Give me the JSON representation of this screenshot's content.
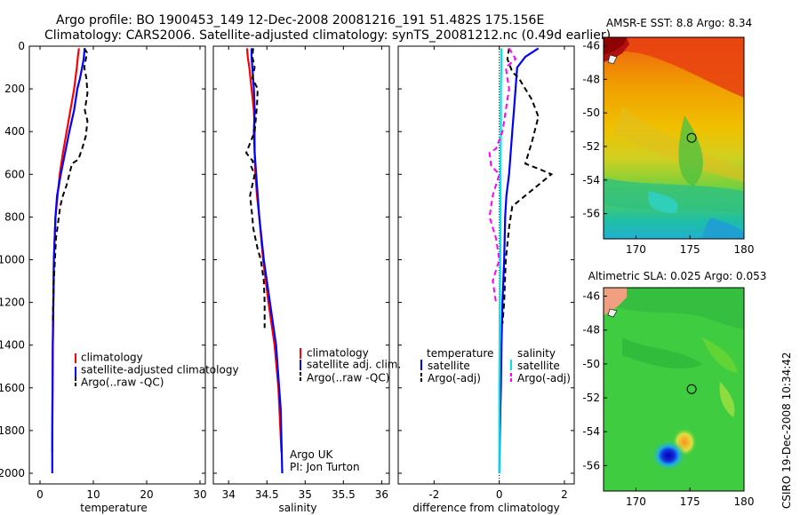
{
  "title_line1": "Argo profile: BO 1900453_149 12-Dec-2008 20081216_191 51.482S 175.156E",
  "title_line2": "Climatology: CARS2006. Satellite-adjusted climatology: synTS_20081212.nc (0.49d earlier)",
  "credit": "CSIRO 19-Dec-2008 10:34:42",
  "colors": {
    "clim": "#ff0000",
    "sat": "#0000ff",
    "argo": "#000000",
    "sal_sat": "#00e6e6",
    "sal_argo": "#ff00ff"
  },
  "chart_data": [
    {
      "type": "line",
      "name": "temperature",
      "xlabel": "temperature",
      "xlim": [
        -2,
        31
      ],
      "ylim": [
        0,
        2050
      ],
      "y_reversed": true,
      "x_ticks": [
        "0",
        "10",
        "20",
        "30"
      ],
      "y_ticks": [
        "0",
        "200",
        "400",
        "600",
        "800",
        "1000",
        "1200",
        "1400",
        "1600",
        "1800",
        "2000"
      ],
      "legend": [
        "climatology",
        "satellite-adjusted climatology",
        "Argo(..raw -QC)"
      ],
      "series": [
        {
          "name": "climatology",
          "color": "red",
          "dash": false,
          "x": [
            7.3,
            7.1,
            6.9,
            6.4,
            5.7,
            5.0,
            4.3,
            3.7,
            3.3,
            2.9,
            2.6,
            2.4,
            2.3
          ],
          "y": [
            10,
            50,
            100,
            200,
            300,
            400,
            500,
            600,
            700,
            800,
            1000,
            1400,
            1900
          ]
        },
        {
          "name": "satellite-adjusted climatology",
          "color": "blue",
          "dash": false,
          "x": [
            8.4,
            8.3,
            8.2,
            7.9,
            7.5,
            7.0,
            6.4,
            5.5,
            4.7,
            3.9,
            3.2,
            2.9,
            2.6,
            2.4,
            2.3,
            2.3
          ],
          "y": [
            10,
            30,
            60,
            100,
            150,
            200,
            300,
            400,
            500,
            600,
            700,
            800,
            1000,
            1400,
            1800,
            2000
          ]
        },
        {
          "name": "Argo(..raw -QC)",
          "color": "black",
          "dash": true,
          "x": [
            8.3,
            8.8,
            8.6,
            8.3,
            8.7,
            8.9,
            8.4,
            8.9,
            8.6,
            7.9,
            7.2,
            6.0,
            5.0,
            4.3,
            3.8,
            3.0,
            2.6,
            2.4
          ],
          "y": [
            10,
            30,
            60,
            100,
            150,
            220,
            300,
            350,
            420,
            480,
            530,
            550,
            650,
            700,
            750,
            900,
            1100,
            1300
          ]
        }
      ]
    },
    {
      "type": "line",
      "name": "salinity",
      "xlabel": "salinity",
      "xlim": [
        33.8,
        36.1
      ],
      "ylim": [
        0,
        2050
      ],
      "y_reversed": true,
      "x_ticks": [
        "34",
        "34.5",
        "35",
        "35.5",
        "36"
      ],
      "legend": [
        "climatology",
        "satellite adj. clim.",
        "Argo(..raw -QC)"
      ],
      "annotation": [
        "Argo UK",
        "PI: Jon Turton"
      ],
      "series": [
        {
          "name": "climatology",
          "color": "red",
          "dash": false,
          "x": [
            34.24,
            34.25,
            34.27,
            34.3,
            34.33,
            34.34,
            34.34,
            34.35,
            34.37,
            34.4,
            34.45,
            34.52,
            34.6,
            34.65,
            34.69
          ],
          "y": [
            10,
            50,
            100,
            200,
            300,
            400,
            500,
            600,
            700,
            800,
            1000,
            1200,
            1400,
            1600,
            1900
          ]
        },
        {
          "name": "satellite adj. clim.",
          "color": "blue",
          "dash": false,
          "x": [
            34.3,
            34.3,
            34.31,
            34.33,
            34.34,
            34.33,
            34.34,
            34.36,
            34.4,
            34.46,
            34.54,
            34.62,
            34.68,
            34.7
          ],
          "y": [
            10,
            50,
            100,
            200,
            300,
            400,
            500,
            600,
            800,
            1000,
            1200,
            1400,
            1700,
            2000
          ]
        },
        {
          "name": "Argo(..raw -QC)",
          "color": "black",
          "dash": true,
          "x": [
            34.32,
            34.31,
            34.34,
            34.31,
            34.38,
            34.37,
            34.34,
            34.23,
            34.32,
            34.29,
            34.34,
            34.28,
            34.31,
            34.32,
            34.35,
            34.38,
            34.42,
            34.46,
            34.47,
            34.47
          ],
          "y": [
            10,
            50,
            100,
            150,
            200,
            280,
            400,
            500,
            540,
            560,
            600,
            700,
            800,
            850,
            900,
            950,
            1000,
            1100,
            1200,
            1320
          ]
        }
      ]
    },
    {
      "type": "line",
      "name": "difference",
      "xlabel": "difference from climatology",
      "xlim": [
        -3.1,
        2.3
      ],
      "ylim": [
        0,
        2050
      ],
      "y_reversed": true,
      "x_ticks": [
        "-2",
        "0",
        "2"
      ],
      "legend_left": [
        "temperature",
        "satellite",
        "Argo(-adj)"
      ],
      "legend_right": [
        "salinity",
        "satellite",
        "Argo(-adj)"
      ],
      "series": [
        {
          "name": "satellite",
          "color": "blue",
          "dash": false,
          "x": [
            1.2,
            0.8,
            0.55,
            0.5,
            0.45,
            0.4,
            0.35,
            0.3,
            0.22,
            0.18,
            0.15,
            0.1,
            0.07,
            0.05,
            0.02,
            0.0
          ],
          "y": [
            10,
            50,
            100,
            200,
            300,
            400,
            500,
            600,
            700,
            800,
            1000,
            1200,
            1400,
            1600,
            1800,
            2000
          ]
        },
        {
          "name": "Argo(-adj)",
          "color": "black",
          "dash": true,
          "x": [
            0.3,
            0.25,
            0.4,
            0.6,
            1.0,
            1.2,
            1.0,
            0.8,
            1.3,
            1.6,
            0.8,
            0.4,
            0.3,
            0.2,
            0.15,
            0.1
          ],
          "y": [
            10,
            60,
            120,
            150,
            250,
            330,
            450,
            550,
            580,
            600,
            700,
            750,
            850,
            1000,
            1200,
            1300
          ]
        },
        {
          "name": "salinity satellite",
          "color": "cyan",
          "dash": false,
          "x": [
            0.06,
            0.06,
            0.05,
            0.05,
            0.04,
            0.04,
            0.03,
            0.02,
            0.01,
            0.0,
            0.0,
            0.0
          ],
          "y": [
            10,
            100,
            200,
            400,
            600,
            800,
            1000,
            1200,
            1400,
            1600,
            1800,
            2000
          ]
        },
        {
          "name": "salinity Argo(-adj)",
          "color": "magenta",
          "dash": true,
          "x": [
            0.3,
            0.5,
            0.2,
            0.3,
            0.1,
            -0.1,
            -0.3,
            -0.25,
            0.0,
            -0.2,
            -0.3,
            -0.1,
            0.0,
            -0.2,
            -0.1
          ],
          "y": [
            10,
            60,
            100,
            200,
            400,
            480,
            500,
            560,
            600,
            700,
            800,
            900,
            1000,
            1100,
            1200
          ]
        }
      ]
    },
    {
      "type": "heatmap",
      "name": "sst-map",
      "title": "AMSR-E SST: 8.8 Argo: 8.34",
      "x_ticks": [
        "170",
        "175",
        "180"
      ],
      "y_ticks": [
        "-46",
        "-48",
        "-50",
        "-52",
        "-54",
        "-56"
      ],
      "xlim": [
        167,
        180
      ],
      "ylim": [
        -57.5,
        -45.5
      ],
      "marker": {
        "lon": 175.156,
        "lat": -51.482
      }
    },
    {
      "type": "heatmap",
      "name": "sla-map",
      "title": "Altimetric SLA: 0.025 Argo: 0.053",
      "x_ticks": [
        "170",
        "175",
        "180"
      ],
      "y_ticks": [
        "-46",
        "-48",
        "-50",
        "-52",
        "-54",
        "-56"
      ],
      "xlim": [
        167,
        180
      ],
      "ylim": [
        -57.5,
        -45.5
      ],
      "marker": {
        "lon": 175.156,
        "lat": -51.482
      }
    }
  ]
}
